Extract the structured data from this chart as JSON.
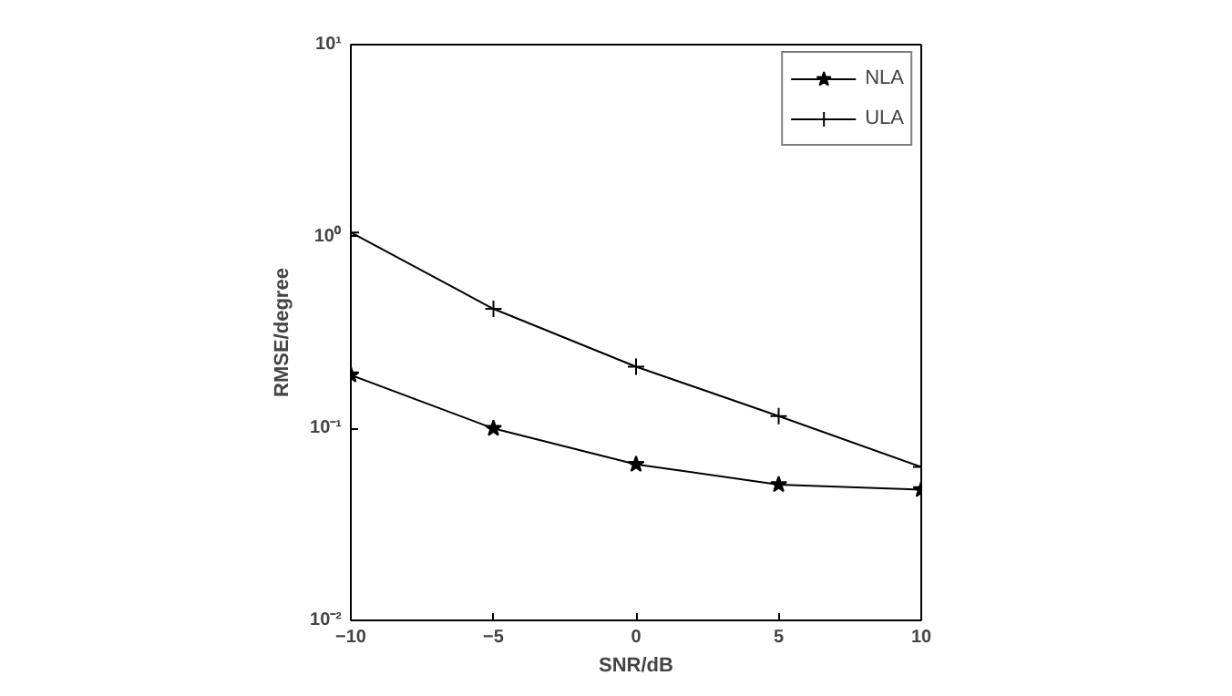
{
  "chart_data": {
    "type": "line",
    "xlabel": "SNR/dB",
    "ylabel": "RMSE/degree",
    "x": [
      -10,
      -5,
      0,
      5,
      10
    ],
    "series": [
      {
        "name": "NLA",
        "color": "#000000",
        "marker": "star",
        "values": [
          0.19,
          0.1,
          0.065,
          0.051,
          0.048
        ]
      },
      {
        "name": "ULA",
        "color": "#000000",
        "marker": "cross",
        "values": [
          1.05,
          0.42,
          0.21,
          0.116,
          0.063
        ]
      }
    ],
    "xlim": [
      -10,
      10
    ],
    "xticks": [
      -10,
      -5,
      0,
      5,
      10
    ],
    "ylim": [
      0.01,
      10
    ],
    "yticks": [
      {
        "value": 0.01,
        "label": "10⁻²"
      },
      {
        "value": 0.1,
        "label": "10⁻¹"
      },
      {
        "value": 1,
        "label": "10⁰"
      },
      {
        "value": 10,
        "label": "10¹"
      }
    ],
    "log": "y",
    "grid": false,
    "legend": "top right",
    "line_style": "solid"
  }
}
